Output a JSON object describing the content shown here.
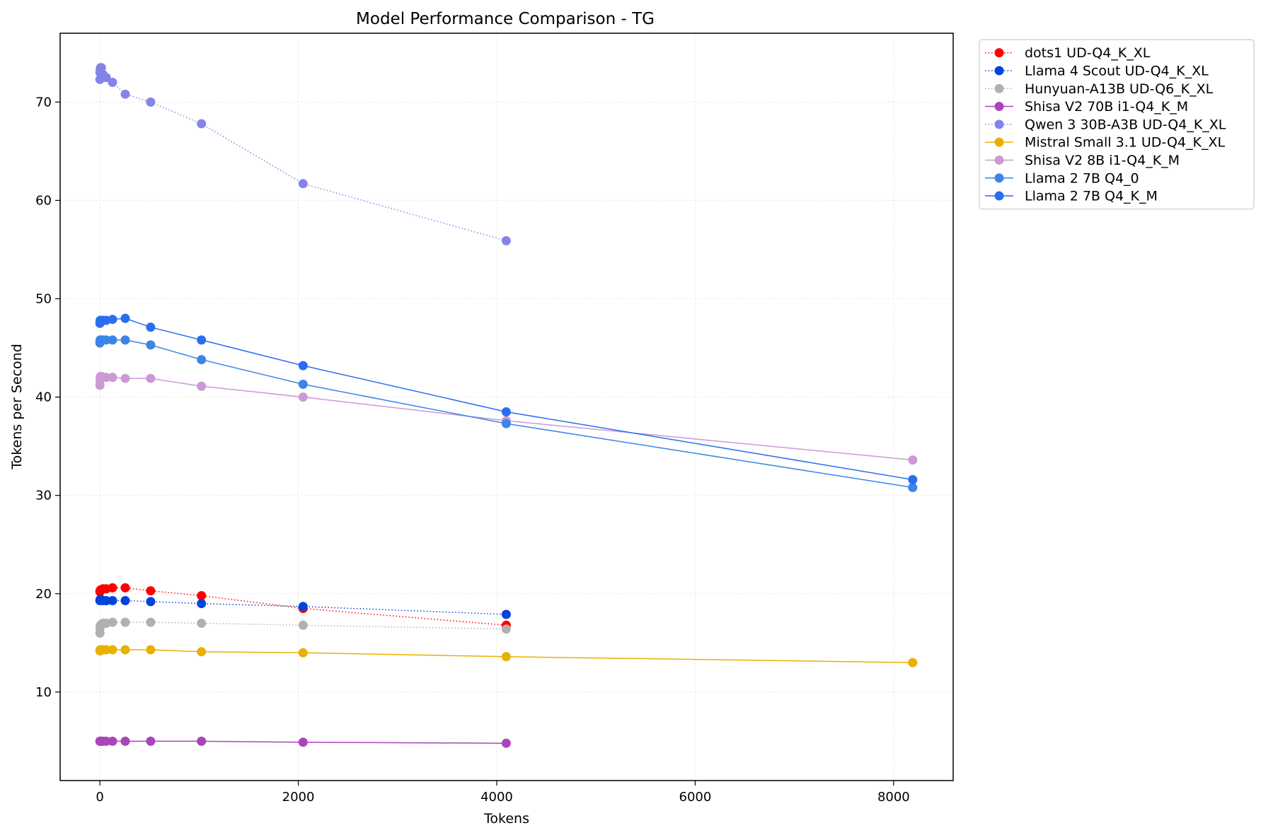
{
  "chart_data": {
    "type": "line",
    "title": "Model Performance Comparison - TG",
    "xlabel": "Tokens",
    "ylabel": "Tokens per Second",
    "xlim": [
      -400,
      8600
    ],
    "ylim": [
      1,
      77
    ],
    "xticks": [
      0,
      2000,
      4000,
      6000,
      8000
    ],
    "yticks": [
      10,
      20,
      30,
      40,
      50,
      60,
      70
    ],
    "grid": true,
    "legend_position": "outside-top-right",
    "series": [
      {
        "name": "dots1 UD-Q4_K_XL",
        "color": "#ff0000",
        "dash": "dotted",
        "x": [
          1,
          2,
          4,
          8,
          16,
          32,
          64,
          128,
          256,
          512,
          1024,
          2048,
          4096
        ],
        "y": [
          20.2,
          20.3,
          20.3,
          20.4,
          20.4,
          20.5,
          20.5,
          20.6,
          20.6,
          20.3,
          19.8,
          18.5,
          16.8
        ]
      },
      {
        "name": "Llama 4 Scout UD-Q4_K_XL",
        "color": "#0044dd",
        "dash": "dotted",
        "x": [
          1,
          2,
          4,
          8,
          16,
          32,
          64,
          128,
          256,
          512,
          1024,
          2048,
          4096
        ],
        "y": [
          19.3,
          19.4,
          19.4,
          19.4,
          19.4,
          19.3,
          19.3,
          19.3,
          19.3,
          19.2,
          19.0,
          18.7,
          17.9
        ]
      },
      {
        "name": "Hunyuan-A13B UD-Q6_K_XL",
        "color": "#b0b0b0",
        "dash": "dotted",
        "x": [
          1,
          2,
          4,
          8,
          16,
          32,
          64,
          128,
          256,
          512,
          1024,
          2048,
          4096
        ],
        "y": [
          16.0,
          16.5,
          16.7,
          16.8,
          16.9,
          17.0,
          17.0,
          17.1,
          17.1,
          17.1,
          17.0,
          16.8,
          16.4
        ]
      },
      {
        "name": "Shisa V2 70B i1-Q4_K_M",
        "color": "#aa44bb",
        "dash": "solid",
        "x": [
          1,
          2,
          4,
          8,
          16,
          32,
          64,
          128,
          256,
          512,
          1024,
          2048,
          4096
        ],
        "y": [
          5.0,
          5.0,
          5.0,
          5.0,
          5.0,
          5.0,
          5.0,
          5.0,
          5.0,
          5.0,
          5.0,
          4.9,
          4.8
        ]
      },
      {
        "name": "Qwen 3 30B-A3B UD-Q4_K_XL",
        "color": "#8484e8",
        "dash": "dotted",
        "x": [
          1,
          2,
          4,
          8,
          16,
          32,
          64,
          128,
          256,
          512,
          1024,
          2048,
          4096
        ],
        "y": [
          72.3,
          73.0,
          73.3,
          73.5,
          73.5,
          72.8,
          72.5,
          72.0,
          70.8,
          70.0,
          67.8,
          61.7,
          55.9
        ]
      },
      {
        "name": "Mistral Small 3.1 UD-Q4_K_XL",
        "color": "#e8b000",
        "dash": "solid",
        "x": [
          1,
          2,
          4,
          8,
          16,
          32,
          64,
          128,
          256,
          512,
          1024,
          2048,
          4096,
          8192
        ],
        "y": [
          14.2,
          14.2,
          14.3,
          14.3,
          14.3,
          14.3,
          14.3,
          14.3,
          14.3,
          14.3,
          14.1,
          14.0,
          13.6,
          13.0
        ]
      },
      {
        "name": "Shisa V2 8B i1-Q4_K_M",
        "color": "#cc99d5",
        "dash": "solid",
        "x": [
          1,
          2,
          4,
          8,
          16,
          32,
          64,
          128,
          256,
          512,
          1024,
          2048,
          4096,
          8192
        ],
        "y": [
          41.2,
          41.7,
          42.0,
          42.1,
          42.1,
          42.0,
          42.0,
          42.0,
          41.9,
          41.9,
          41.1,
          40.0,
          37.6,
          33.6
        ]
      },
      {
        "name": "Llama 2 7B Q4_0",
        "color": "#3a86e6",
        "dash": "solid",
        "x": [
          1,
          2,
          4,
          8,
          16,
          32,
          64,
          128,
          256,
          512,
          1024,
          2048,
          4096,
          8192
        ],
        "y": [
          45.5,
          45.7,
          45.8,
          45.8,
          45.8,
          45.8,
          45.8,
          45.8,
          45.8,
          45.3,
          43.8,
          41.3,
          37.3,
          30.8
        ]
      },
      {
        "name": "Llama 2 7B Q4_K_M",
        "color": "#2a6ef0",
        "dash": "solid",
        "x": [
          1,
          2,
          4,
          8,
          16,
          32,
          64,
          128,
          256,
          512,
          1024,
          2048,
          4096,
          8192
        ],
        "y": [
          47.5,
          47.7,
          47.8,
          47.8,
          47.8,
          47.8,
          47.8,
          47.9,
          48.0,
          47.1,
          45.8,
          43.2,
          38.5,
          31.6
        ]
      }
    ]
  }
}
